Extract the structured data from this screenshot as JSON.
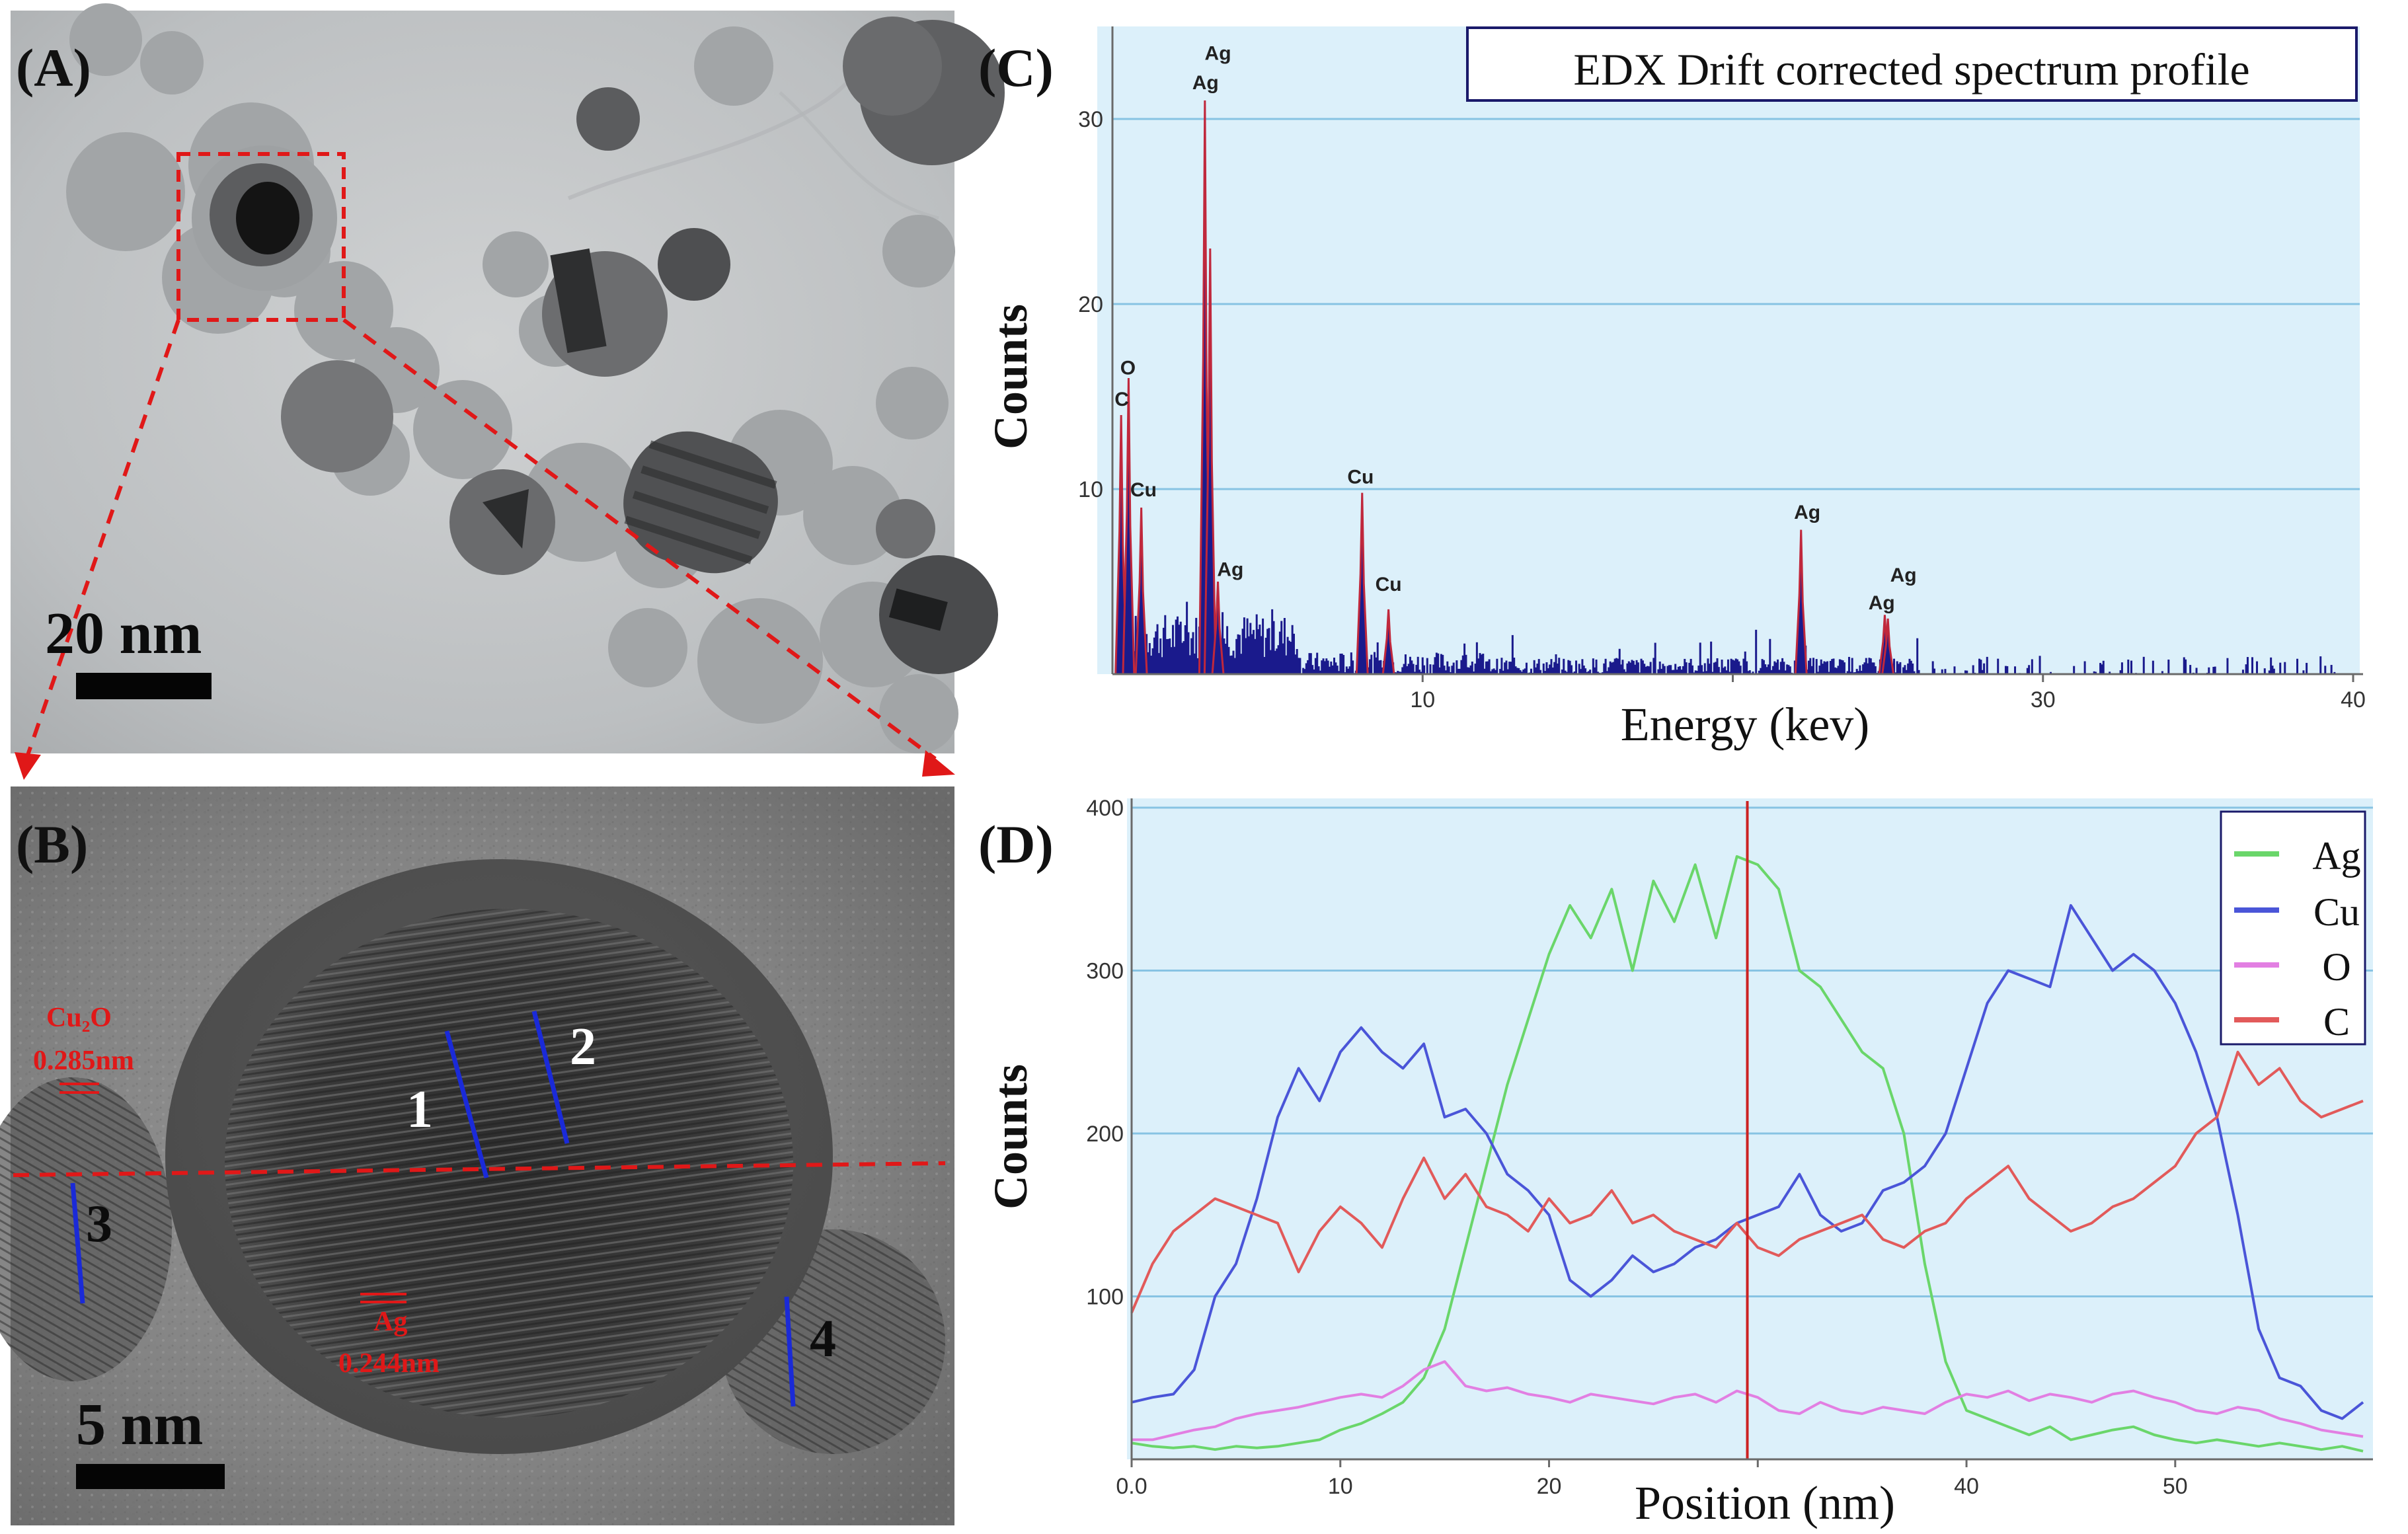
{
  "panels": {
    "A": {
      "label": "(A)",
      "scale_bar": "20 nm"
    },
    "B": {
      "label": "(B)",
      "scale_bar": "5 nm",
      "annotations": {
        "cu2o_phase": "Cu₂O",
        "cu2o_spacing": "0.285nm",
        "ag_phase": "Ag",
        "ag_spacing": "0.244nm"
      },
      "line_markers": [
        "1",
        "2",
        "3",
        "4"
      ]
    },
    "C": {
      "label": "(C)",
      "legend_box": "EDX Drift corrected spectrum profile"
    },
    "D": {
      "label": "(D)"
    }
  },
  "colors": {
    "plot_bg": "#dcf0fa",
    "grid": "#87c3e3",
    "spectrum": "#1a1a8c",
    "peak_edge": "#c0283c",
    "ag": "#6ad66a",
    "cu": "#4a55d8",
    "o": "#e27fe2",
    "c": "#e25a5a",
    "marker_line": "#cc2222",
    "dashed_red": "#e01818",
    "blue_line": "#1a2ad8"
  },
  "chart_data": [
    {
      "type": "area",
      "panel": "C",
      "title": "EDX Drift corrected spectrum profile",
      "xlabel": "Energy (kev)",
      "ylabel": "Counts",
      "xlim": [
        0,
        40
      ],
      "ylim": [
        0,
        35
      ],
      "xticks": [
        10,
        20,
        30,
        40
      ],
      "yticks": [
        10,
        20,
        30
      ],
      "grid": true,
      "peaks": [
        {
          "x": 0.28,
          "y": 14,
          "label": "C"
        },
        {
          "x": 0.52,
          "y": 16,
          "label": "O"
        },
        {
          "x": 0.93,
          "y": 9,
          "label": "Cu"
        },
        {
          "x": 2.98,
          "y": 31,
          "label": "Ag"
        },
        {
          "x": 3.15,
          "y": 23,
          "label": "Ag"
        },
        {
          "x": 3.4,
          "y": 5,
          "label": "Ag"
        },
        {
          "x": 8.05,
          "y": 9.8,
          "label": "Cu"
        },
        {
          "x": 8.9,
          "y": 3.5,
          "label": "Cu"
        },
        {
          "x": 22.2,
          "y": 7.8,
          "label": "Ag"
        },
        {
          "x": 24.9,
          "y": 3.2,
          "label": "Ag"
        },
        {
          "x": 25.0,
          "y": 3.0,
          "label": "Ag"
        }
      ],
      "peak_labels": [
        {
          "text": "O",
          "x": 0.5,
          "y": 16.2
        },
        {
          "text": "C",
          "x": 0.3,
          "y": 14.5
        },
        {
          "text": "Cu",
          "x": 1.0,
          "y": 9.6
        },
        {
          "text": "Ag",
          "x": 3.4,
          "y": 33.2
        },
        {
          "text": "Ag",
          "x": 3.0,
          "y": 31.6
        },
        {
          "text": "Ag",
          "x": 3.8,
          "y": 5.3
        },
        {
          "text": "Cu",
          "x": 8.0,
          "y": 10.3
        },
        {
          "text": "Cu",
          "x": 8.9,
          "y": 4.5
        },
        {
          "text": "Ag",
          "x": 22.4,
          "y": 8.4
        },
        {
          "text": "Ag",
          "x": 25.5,
          "y": 5.0
        },
        {
          "text": "Ag",
          "x": 24.8,
          "y": 3.5
        }
      ]
    },
    {
      "type": "line",
      "panel": "D",
      "xlabel": "Position (nm)",
      "ylabel": "Counts",
      "xlim": [
        0,
        59
      ],
      "ylim": [
        0,
        400
      ],
      "xticks": [
        0.0,
        10,
        20,
        30,
        40,
        50
      ],
      "xtick_labels": [
        "0.0",
        "10",
        "20",
        "30",
        "40",
        "50"
      ],
      "yticks": [
        100,
        200,
        300,
        400
      ],
      "grid": true,
      "legend_position": "top-right",
      "vertical_marker_x": 29.5,
      "x": [
        0,
        1,
        2,
        3,
        4,
        5,
        6,
        7,
        8,
        9,
        10,
        11,
        12,
        13,
        14,
        15,
        16,
        17,
        18,
        19,
        20,
        21,
        22,
        23,
        24,
        25,
        26,
        27,
        28,
        29,
        30,
        31,
        32,
        33,
        34,
        35,
        36,
        37,
        38,
        39,
        40,
        41,
        42,
        43,
        44,
        45,
        46,
        47,
        48,
        49,
        50,
        51,
        52,
        53,
        54,
        55,
        56,
        57,
        58,
        59
      ],
      "series": [
        {
          "name": "Ag",
          "values": [
            10,
            8,
            7,
            8,
            6,
            8,
            7,
            8,
            10,
            12,
            18,
            22,
            28,
            35,
            50,
            80,
            130,
            180,
            230,
            270,
            310,
            340,
            320,
            350,
            300,
            355,
            330,
            365,
            320,
            370,
            365,
            350,
            300,
            290,
            270,
            250,
            240,
            200,
            120,
            60,
            30,
            25,
            20,
            15,
            20,
            12,
            15,
            18,
            20,
            15,
            12,
            10,
            12,
            10,
            8,
            10,
            8,
            6,
            8,
            5
          ]
        },
        {
          "name": "Cu",
          "values": [
            35,
            38,
            40,
            55,
            100,
            120,
            160,
            210,
            240,
            220,
            250,
            265,
            250,
            240,
            255,
            210,
            215,
            200,
            175,
            165,
            150,
            110,
            100,
            110,
            125,
            115,
            120,
            130,
            135,
            145,
            150,
            155,
            175,
            150,
            140,
            145,
            165,
            170,
            180,
            200,
            240,
            280,
            300,
            295,
            290,
            340,
            320,
            300,
            310,
            300,
            280,
            250,
            210,
            150,
            80,
            50,
            45,
            30,
            25,
            35
          ]
        },
        {
          "name": "O",
          "values": [
            12,
            12,
            15,
            18,
            20,
            25,
            28,
            30,
            32,
            35,
            38,
            40,
            38,
            45,
            55,
            60,
            45,
            42,
            44,
            40,
            38,
            35,
            40,
            38,
            36,
            34,
            38,
            40,
            35,
            42,
            38,
            30,
            28,
            35,
            30,
            28,
            32,
            30,
            28,
            35,
            40,
            38,
            42,
            36,
            40,
            38,
            35,
            40,
            42,
            38,
            35,
            30,
            28,
            32,
            30,
            25,
            22,
            18,
            16,
            14
          ]
        },
        {
          "name": "C",
          "values": [
            90,
            120,
            140,
            150,
            160,
            155,
            150,
            145,
            115,
            140,
            155,
            145,
            130,
            160,
            185,
            160,
            175,
            155,
            150,
            140,
            160,
            145,
            150,
            165,
            145,
            150,
            140,
            135,
            130,
            145,
            130,
            125,
            135,
            140,
            145,
            150,
            135,
            130,
            140,
            145,
            160,
            170,
            180,
            160,
            150,
            140,
            145,
            155,
            160,
            170,
            180,
            200,
            210,
            250,
            230,
            240,
            220,
            210,
            215,
            220
          ]
        }
      ]
    }
  ]
}
